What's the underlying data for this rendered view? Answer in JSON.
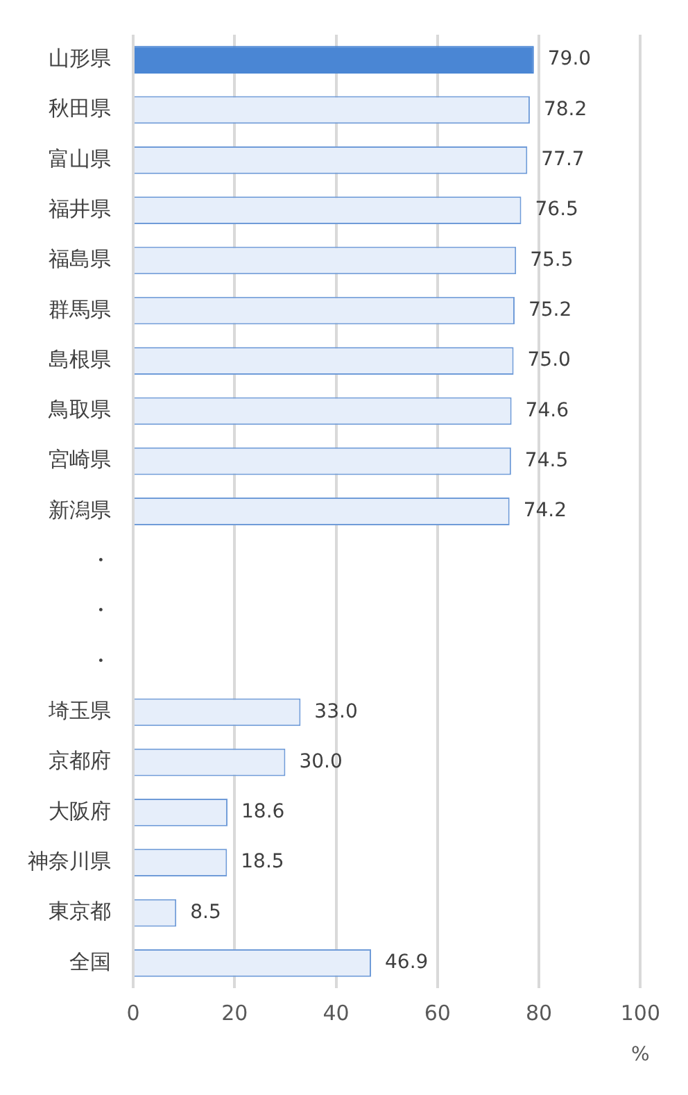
{
  "chart_data": {
    "type": "bar",
    "orientation": "horizontal",
    "categories": [
      "山形県",
      "秋田県",
      "富山県",
      "福井県",
      "福島県",
      "群馬県",
      "島根県",
      "鳥取県",
      "宮崎県",
      "新潟県",
      "・",
      "・",
      "・",
      "埼玉県",
      "京都府",
      "大阪府",
      "神奈川県",
      "東京都",
      "全国"
    ],
    "values": [
      79.0,
      78.2,
      77.7,
      76.5,
      75.5,
      75.2,
      75.0,
      74.6,
      74.5,
      74.2,
      null,
      null,
      null,
      33.0,
      30.0,
      18.6,
      18.5,
      8.5,
      46.9
    ],
    "value_labels": [
      "79.0",
      "78.2",
      "77.7",
      "76.5",
      "75.5",
      "75.2",
      "75.0",
      "74.6",
      "74.5",
      "74.2",
      null,
      null,
      null,
      "33.0",
      "30.0",
      "18.6",
      "18.5",
      "8.5",
      "46.9"
    ],
    "colors": [
      "#4a86d4",
      "#e6eefa",
      "#e6eefa",
      "#e6eefa",
      "#e6eefa",
      "#e6eefa",
      "#e6eefa",
      "#e6eefa",
      "#e6eefa",
      "#e6eefa",
      "#e6eefa",
      "#e6eefa",
      "#e6eefa",
      "#e6eefa",
      "#e6eefa",
      "#e6eefa",
      "#e6eefa",
      "#e6eefa",
      "#e6eefa"
    ],
    "xlabel": "%",
    "xlim": [
      0,
      100
    ],
    "xticks": [
      0,
      20,
      40,
      60,
      80,
      100
    ],
    "grid": "x",
    "legend": false
  }
}
